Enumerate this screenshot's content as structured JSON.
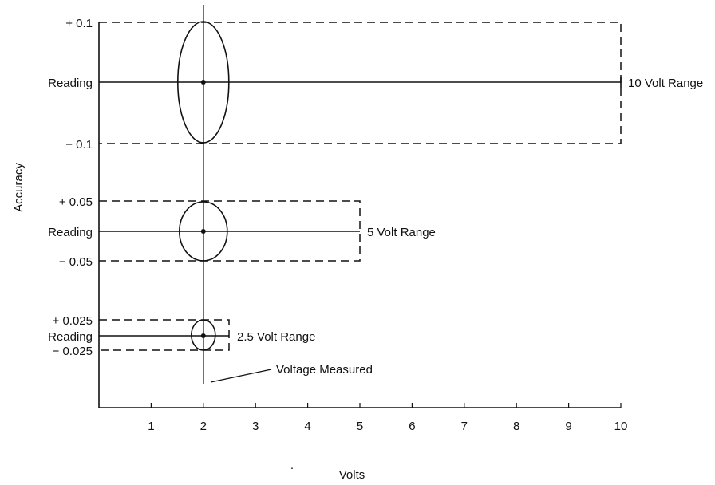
{
  "diagram": {
    "y_axis_title": "Accuracy",
    "x_axis_title": "Volts",
    "x_ticks": [
      "1",
      "2",
      "3",
      "4",
      "5",
      "6",
      "7",
      "8",
      "9",
      "10"
    ],
    "bands": [
      {
        "upper_label": "+ 0.1",
        "center_label": "Reading",
        "lower_label": "− 0.1",
        "range_label": "10 Volt Range"
      },
      {
        "upper_label": "+ 0.05",
        "center_label": "Reading",
        "lower_label": "− 0.05",
        "range_label": "5 Volt Range"
      },
      {
        "upper_label": "+ 0.025",
        "center_label": "Reading",
        "lower_label": "− 0.025",
        "range_label": "2.5 Volt Range"
      }
    ],
    "annotation": "Voltage Measured"
  }
}
